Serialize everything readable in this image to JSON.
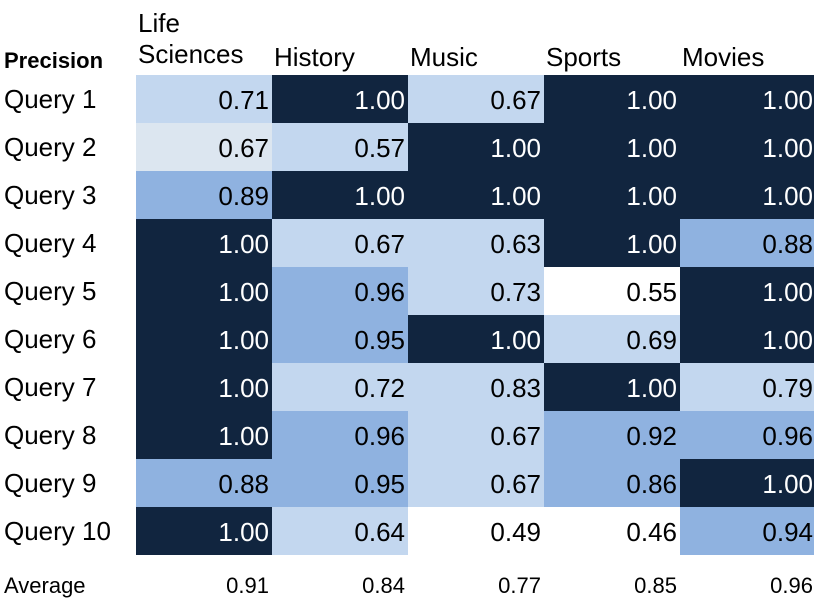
{
  "chart_data": {
    "type": "heatmap",
    "corner_label": "Precision",
    "columns": [
      "Life\nSciences",
      "History",
      "Music",
      "Sports",
      "Movies"
    ],
    "rows": [
      "Query 1",
      "Query 2",
      "Query 3",
      "Query 4",
      "Query 5",
      "Query 6",
      "Query 7",
      "Query 8",
      "Query 9",
      "Query 10"
    ],
    "values": [
      [
        "0.71",
        "1.00",
        "0.67",
        "1.00",
        "1.00"
      ],
      [
        "0.67",
        "0.57",
        "1.00",
        "1.00",
        "1.00"
      ],
      [
        "0.89",
        "1.00",
        "1.00",
        "1.00",
        "1.00"
      ],
      [
        "1.00",
        "0.67",
        "0.63",
        "1.00",
        "0.88"
      ],
      [
        "1.00",
        "0.96",
        "0.73",
        "0.55",
        "1.00"
      ],
      [
        "1.00",
        "0.95",
        "1.00",
        "0.69",
        "1.00"
      ],
      [
        "1.00",
        "0.72",
        "0.83",
        "1.00",
        "0.79"
      ],
      [
        "1.00",
        "0.96",
        "0.67",
        "0.92",
        "0.96"
      ],
      [
        "0.88",
        "0.95",
        "0.67",
        "0.86",
        "1.00"
      ],
      [
        "1.00",
        "0.64",
        "0.49",
        "0.46",
        "0.94"
      ]
    ],
    "average_label": "Average",
    "averages": [
      "0.91",
      "0.84",
      "0.77",
      "0.85",
      "0.96"
    ],
    "colors": {
      "perfect": "#11253f",
      "high": "#8fb2e0",
      "mid": "#c3d7ef",
      "low": "#dce6f0",
      "none": "#ffffff"
    }
  }
}
